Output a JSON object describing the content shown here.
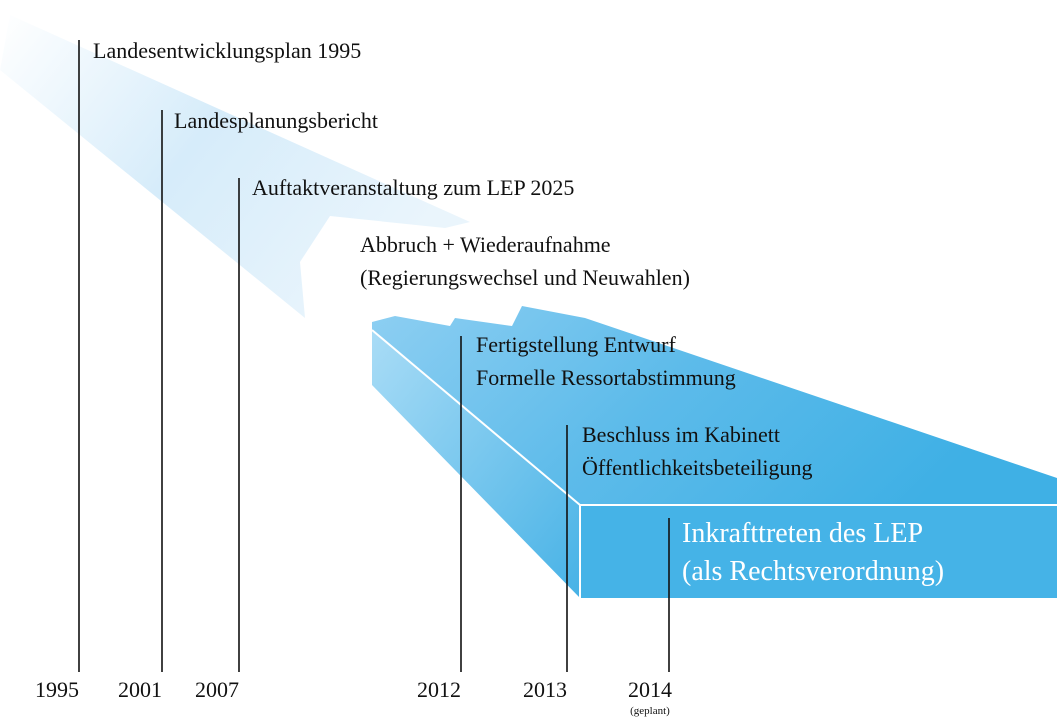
{
  "events": [
    {
      "year": "1995",
      "lines": [
        "Landesentwicklungsplan 1995"
      ]
    },
    {
      "year": "2001",
      "lines": [
        "Landesplanungsbericht"
      ]
    },
    {
      "year": "2007",
      "lines": [
        "Auftaktveranstaltung zum LEP 2025"
      ]
    },
    {
      "lines": [
        "Abbruch + Wiederaufnahme",
        "(Regierungswechsel und Neuwahlen)"
      ]
    },
    {
      "year": "2012",
      "lines": [
        "Fertigstellung Entwurf",
        "Formelle Ressortabstimmung"
      ]
    },
    {
      "year": "2013",
      "lines": [
        "Beschluss im Kabinett",
        "Öffentlichkeitsbeteiligung"
      ]
    },
    {
      "year": "2014",
      "note": "(geplant)",
      "lines": [
        "Inkrafttreten des LEP",
        "(als Rechtsverordnung)"
      ]
    }
  ]
}
